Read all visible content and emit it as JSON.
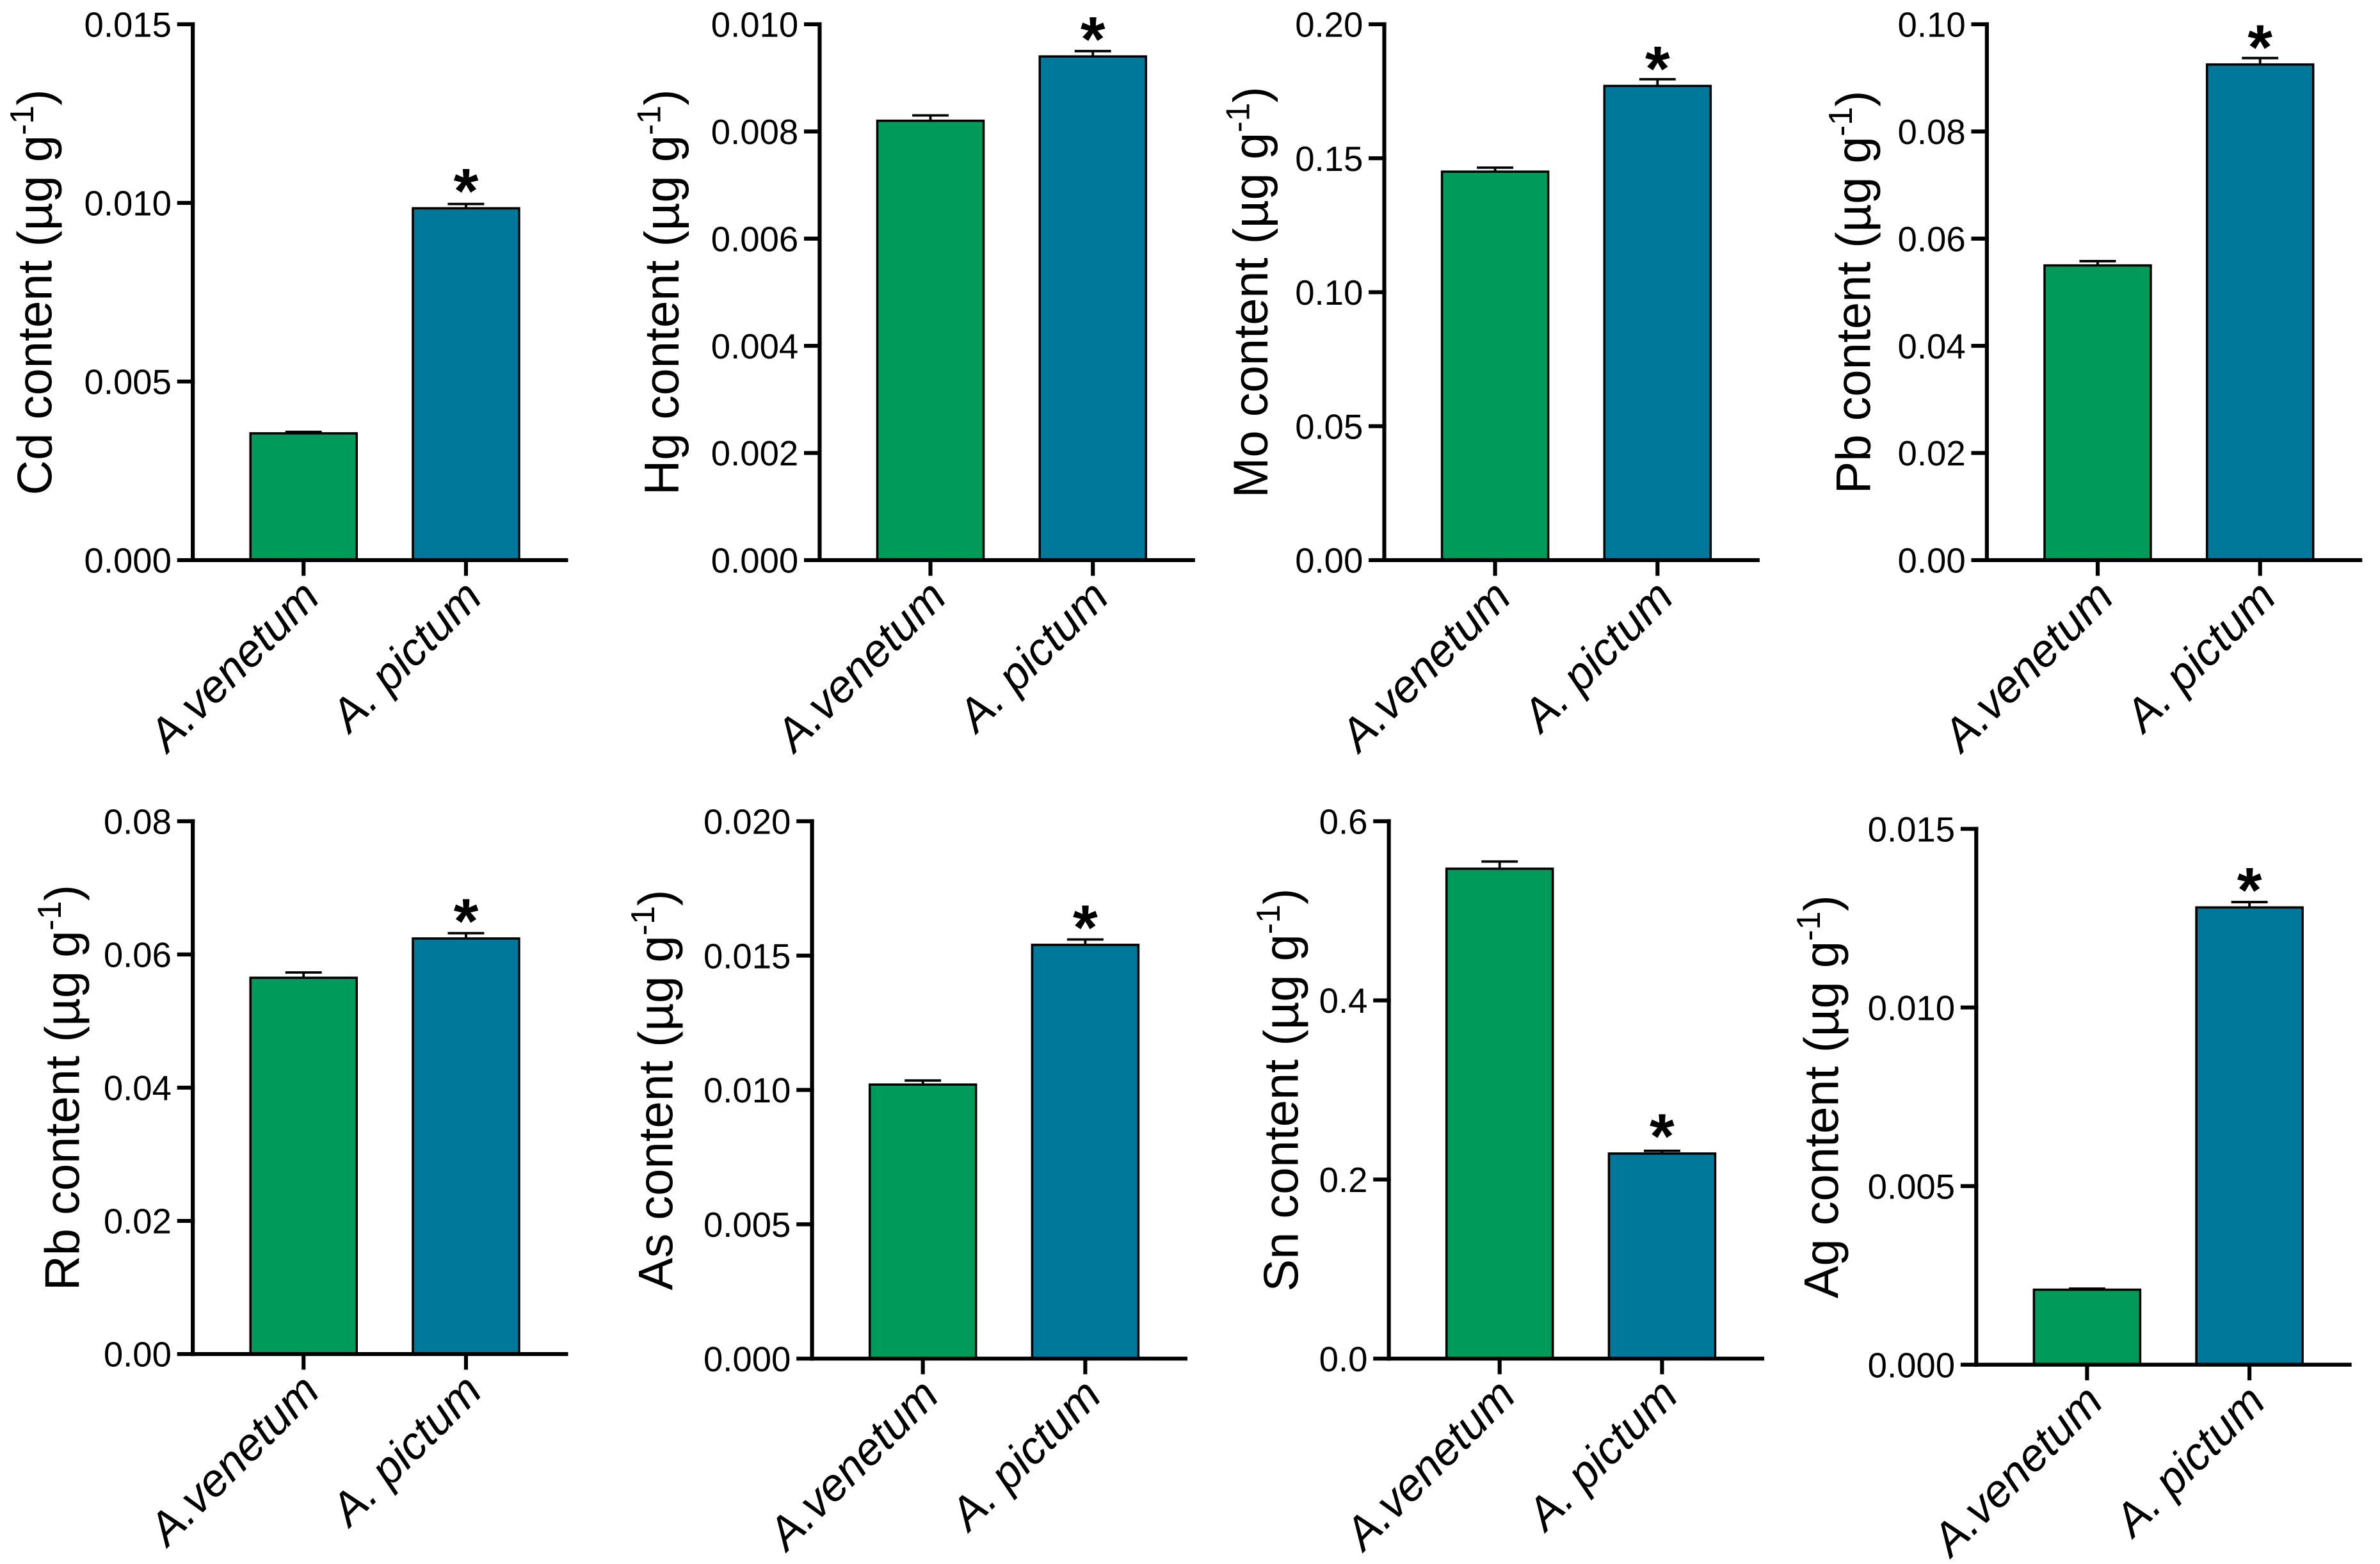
{
  "colors": [
    "#009A5B",
    "#00789A"
  ],
  "chart_data": [
    {
      "type": "bar",
      "categories": [
        "A.venetum",
        "A. pictum"
      ],
      "values": [
        0.00355,
        0.00985
      ],
      "errors": [
        4e-05,
        0.00012
      ],
      "ylim": [
        0,
        0.015
      ],
      "yticks": [
        "0.000",
        "0.005",
        "0.010",
        "0.015"
      ],
      "ylabel": {
        "text": "Cd content (µg g",
        "sup": "-1",
        "end": ")"
      },
      "significance": {
        "index": 1,
        "marker": "*"
      }
    },
    {
      "type": "bar",
      "categories": [
        "A.venetum",
        "A. pictum"
      ],
      "values": [
        0.0082,
        0.0094
      ],
      "errors": [
        0.0001,
        0.0001
      ],
      "ylim": [
        0,
        0.01
      ],
      "yticks": [
        "0.000",
        "0.002",
        "0.004",
        "0.006",
        "0.008",
        "0.010"
      ],
      "ylabel": {
        "text": "Hg content (µg g",
        "sup": "-1",
        "end": ")"
      },
      "significance": {
        "index": 1,
        "marker": "*"
      }
    },
    {
      "type": "bar",
      "categories": [
        "A.venetum",
        "A. pictum"
      ],
      "values": [
        0.145,
        0.177
      ],
      "errors": [
        0.0015,
        0.0025
      ],
      "ylim": [
        0,
        0.2
      ],
      "yticks": [
        "0.00",
        "0.05",
        "0.10",
        "0.15",
        "0.20"
      ],
      "ylabel": {
        "text": "Mo content (µg g",
        "sup": "-1",
        "end": ")"
      },
      "significance": {
        "index": 1,
        "marker": "*"
      }
    },
    {
      "type": "bar",
      "categories": [
        "A.venetum",
        "A. pictum"
      ],
      "values": [
        0.055,
        0.0925
      ],
      "errors": [
        0.0008,
        0.0012
      ],
      "ylim": [
        0,
        0.1
      ],
      "yticks": [
        "0.00",
        "0.02",
        "0.04",
        "0.06",
        "0.08",
        "0.10"
      ],
      "ylabel": {
        "text": "Pb content (µg g",
        "sup": "-1",
        "end": ")"
      },
      "significance": {
        "index": 1,
        "marker": "*"
      }
    },
    {
      "type": "bar",
      "categories": [
        "A.venetum",
        "A. pictum"
      ],
      "values": [
        0.0565,
        0.0624
      ],
      "errors": [
        0.0008,
        0.0008
      ],
      "ylim": [
        0,
        0.08
      ],
      "yticks": [
        "0.00",
        "0.02",
        "0.04",
        "0.06",
        "0.08"
      ],
      "ylabel": {
        "text": "Rb content (µg g",
        "sup": "-1",
        "end": ")"
      },
      "significance": {
        "index": 1,
        "marker": "*"
      }
    },
    {
      "type": "bar",
      "categories": [
        "A.venetum",
        "A. pictum"
      ],
      "values": [
        0.0102,
        0.0154
      ],
      "errors": [
        0.00015,
        0.0002
      ],
      "ylim": [
        0,
        0.02
      ],
      "yticks": [
        "0.000",
        "0.005",
        "0.010",
        "0.015",
        "0.020"
      ],
      "ylabel": {
        "text": "As content (µg g",
        "sup": "-1",
        "end": ")"
      },
      "significance": {
        "index": 1,
        "marker": "*"
      }
    },
    {
      "type": "bar",
      "categories": [
        "A.venetum",
        "A. pictum"
      ],
      "values": [
        0.547,
        0.229
      ],
      "errors": [
        0.008,
        0.003
      ],
      "ylim": [
        0,
        0.6
      ],
      "yticks": [
        "0.0",
        "0.2",
        "0.4",
        "0.6"
      ],
      "ylabel": {
        "text": "Sn content (µg g",
        "sup": "-1",
        "end": ")"
      },
      "significance": {
        "index": 1,
        "marker": "*"
      }
    },
    {
      "type": "bar",
      "categories": [
        "A.venetum",
        "A. pictum"
      ],
      "values": [
        0.0021,
        0.0128
      ],
      "errors": [
        3e-05,
        0.00015
      ],
      "ylim": [
        0,
        0.015
      ],
      "yticks": [
        "0.000",
        "0.005",
        "0.010",
        "0.015"
      ],
      "ylabel": {
        "text": "Ag content (µg g",
        "sup": "-1",
        "end": ")"
      },
      "significance": {
        "index": 1,
        "marker": "*"
      }
    }
  ]
}
